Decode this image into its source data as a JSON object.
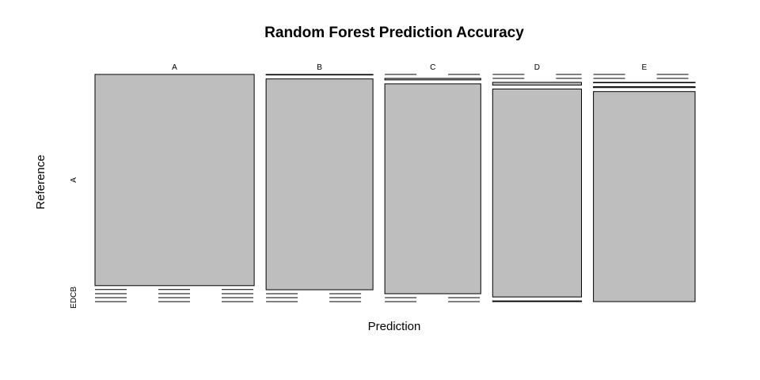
{
  "chart_data": {
    "type": "mosaic",
    "title": "Random Forest Prediction Accuracy",
    "xlabel": "Prediction",
    "ylabel": "Reference",
    "x_categories": [
      "A",
      "B",
      "C",
      "D",
      "E"
    ],
    "y_categories": [
      "A",
      "B",
      "C",
      "D",
      "E"
    ],
    "x_tick_labels": [
      "A",
      "B",
      "C",
      "D",
      "E"
    ],
    "y_tick_labels": [
      "A",
      "EDCB"
    ],
    "column_totals": [
      1675,
      1125,
      1010,
      935,
      1070
    ],
    "matrix": [
      [
        1674,
        3,
        0,
        0,
        0
      ],
      [
        1,
        1122,
        7,
        0,
        0
      ],
      [
        0,
        0,
        1003,
        12,
        2
      ],
      [
        0,
        0,
        0,
        920,
        5
      ],
      [
        0,
        0,
        0,
        3,
        1063
      ]
    ],
    "grid": false,
    "fill_color": "#bebebe"
  }
}
